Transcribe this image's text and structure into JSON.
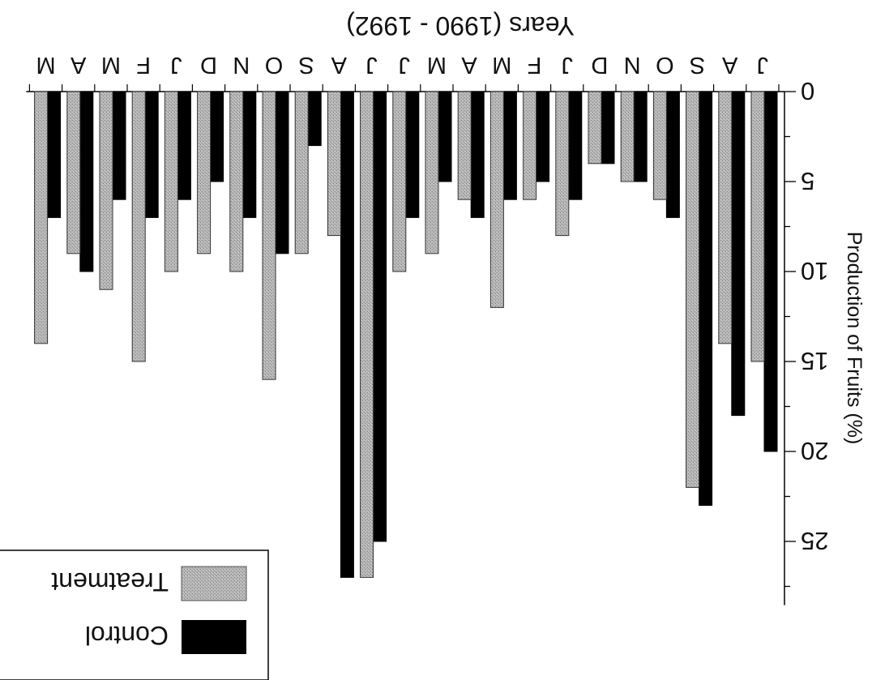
{
  "chart_data": {
    "type": "bar",
    "orientation": "vertical, image rotated 180 degrees",
    "xlabel": "Years (1990 - 1992)",
    "ylabel": "Production  of  Fruits  (%)",
    "ylim": [
      0,
      28
    ],
    "yticks": [
      0,
      5,
      10,
      15,
      20,
      25
    ],
    "grid": false,
    "legend_position": "bottom-left of image",
    "categories": [
      "J",
      "A",
      "S",
      "O",
      "N",
      "D",
      "J",
      "F",
      "M",
      "A",
      "M",
      "J",
      "J",
      "A",
      "S",
      "O",
      "N",
      "D",
      "J",
      "F",
      "M",
      "A",
      "M"
    ],
    "series": [
      {
        "name": "Control",
        "color": "#000000",
        "values": [
          20,
          18,
          23,
          7,
          5,
          4,
          6,
          5,
          6,
          7,
          5,
          7,
          25,
          27,
          3,
          9,
          7,
          5,
          6,
          7,
          6,
          10,
          7
        ]
      },
      {
        "name": "Treatment",
        "color": "#a8a8a8",
        "values": [
          15,
          14,
          22,
          6,
          5,
          4,
          8,
          6,
          12,
          6,
          9,
          10,
          27,
          8,
          9,
          16,
          10,
          9,
          10,
          15,
          11,
          9,
          14
        ]
      }
    ]
  }
}
